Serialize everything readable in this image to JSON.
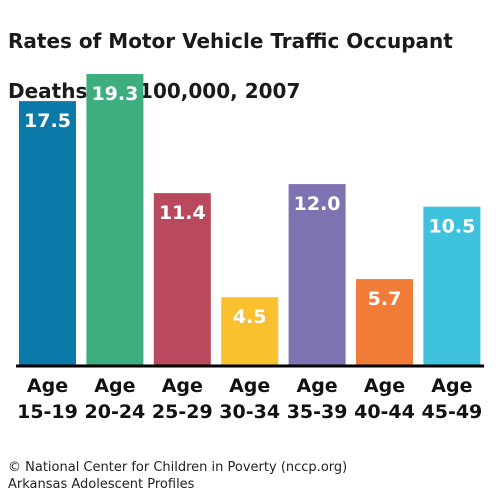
{
  "title_line1": "Rates of Motor Vehicle Traffic Occupant",
  "title_line2": "Deaths per 100,000, 2007",
  "source_line1": "© National Center for Children in Poverty (nccp.org)",
  "source_line2": "Arkansas Adolescent Profiles",
  "chart_data": {
    "type": "bar",
    "title": "Rates of Motor Vehicle Traffic Occupant Deaths per 100,000, 2007",
    "categories": [
      "Age 15-19",
      "Age 20-24",
      "Age 25-29",
      "Age 30-34",
      "Age 35-39",
      "Age 40-44",
      "Age 45-49"
    ],
    "category_lines": [
      [
        "Age",
        "15-19"
      ],
      [
        "Age",
        "20-24"
      ],
      [
        "Age",
        "25-29"
      ],
      [
        "Age",
        "30-34"
      ],
      [
        "Age",
        "35-39"
      ],
      [
        "Age",
        "40-44"
      ],
      [
        "Age",
        "45-49"
      ]
    ],
    "values": [
      17.5,
      19.3,
      11.4,
      4.5,
      12.0,
      5.7,
      10.5
    ],
    "value_labels": [
      "17.5",
      "19.3",
      "11.4",
      "4.5",
      "12.0",
      "5.7",
      "10.5"
    ],
    "colors": [
      "#0b7aa8",
      "#3fae7f",
      "#b94a5d",
      "#fbc02d",
      "#7f72b1",
      "#f07c38",
      "#3fc2dd"
    ],
    "ylim": [
      0,
      19.3
    ],
    "xlabel": "",
    "ylabel": "",
    "grid": false,
    "legend": "none"
  }
}
